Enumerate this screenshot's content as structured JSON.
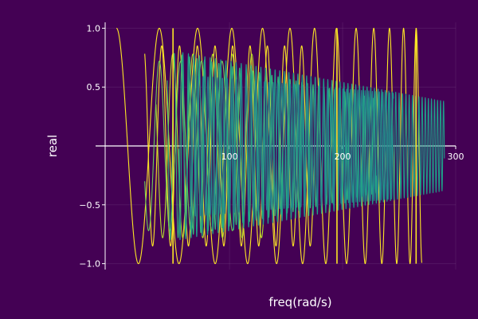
{
  "chart_data": {
    "type": "line",
    "title": "",
    "xlabel": "freq(rad/s)",
    "ylabel": "real",
    "xlim": [
      -10,
      300
    ],
    "ylim": [
      -1.05,
      1.05
    ],
    "x_ticks": [
      100,
      200,
      300
    ],
    "x_tick_labels": [
      "100",
      "200",
      "300"
    ],
    "y_ticks": [
      -1.0,
      -0.5,
      0.5,
      1.0
    ],
    "y_tick_labels": [
      "−1.0",
      "−0.5",
      "0.5",
      "1.0"
    ],
    "grid": true,
    "legend": "none",
    "background": "#440154",
    "series": [
      {
        "color": "#fde725",
        "x_start": 0,
        "x_end": 270,
        "period_start": 40,
        "period_end": 10,
        "amp_start": 1.0,
        "amp_end": 1.0,
        "phase": 0.0
      },
      {
        "color": "#fde725",
        "x_start": 25,
        "x_end": 175,
        "period_start": 16,
        "period_end": 15,
        "amp_start": 0.85,
        "amp_end": 0.85,
        "phase": 0.4
      },
      {
        "color": "#b5de2b",
        "x_start": 35,
        "x_end": 130,
        "period_start": 18,
        "period_end": 17,
        "amp_start": 0.78,
        "amp_end": 0.78,
        "phase": 1.1
      },
      {
        "color": "#6ece58",
        "x_start": 25,
        "x_end": 110,
        "period_start": 19,
        "period_end": 18,
        "amp_start": 0.72,
        "amp_end": 0.72,
        "phase": 2.0
      },
      {
        "color": "#35b779",
        "x_start": 45,
        "x_end": 230,
        "period_start": 7,
        "period_end": 4,
        "amp_start": 0.8,
        "amp_end": 0.4,
        "phase": 0.8
      },
      {
        "color": "#1f9e89",
        "x_start": 55,
        "x_end": 290,
        "period_start": 5,
        "period_end": 2.6,
        "amp_start": 0.8,
        "amp_end": 0.38,
        "phase": 1.6
      },
      {
        "color": "#26828e",
        "x_start": 65,
        "x_end": 245,
        "period_start": 4.5,
        "period_end": 3,
        "amp_start": 0.6,
        "amp_end": 0.45,
        "phase": 2.6
      }
    ],
    "vertical_lines": [
      {
        "color": "#fde725",
        "x": 50
      },
      {
        "color": "#fde725",
        "x": 195
      },
      {
        "color": "#fde725",
        "x": 265
      }
    ]
  }
}
